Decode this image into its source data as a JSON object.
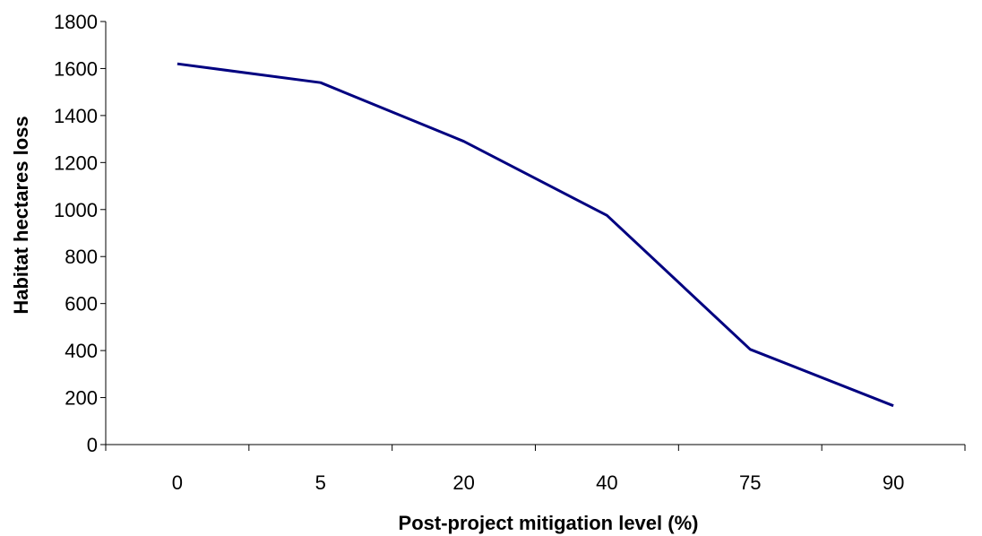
{
  "chart_data": {
    "type": "line",
    "title": "",
    "xlabel": "Post-project mitigation level (%)",
    "ylabel": "Habitat hectares loss",
    "categories": [
      "0",
      "5",
      "20",
      "40",
      "75",
      "90"
    ],
    "series": [
      {
        "values": [
          1620,
          1540,
          1290,
          975,
          405,
          165
        ],
        "color": "#000080"
      }
    ],
    "ylim": [
      0,
      1800
    ],
    "yticks": [
      0,
      200,
      400,
      600,
      800,
      1000,
      1200,
      1400,
      1600,
      1800
    ],
    "grid": false,
    "legend": "none"
  }
}
